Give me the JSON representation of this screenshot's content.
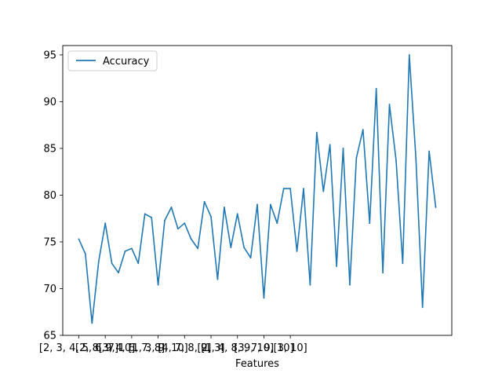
{
  "chart_data": {
    "type": "line",
    "title": "",
    "xlabel": "Features",
    "ylabel": "",
    "x_tick_labels": [
      "[2, 3, 4, 5, 6, 7]",
      "[2, 8, 9, 10]",
      "[3, 4, 6, 7, 8]",
      "[1, 3, 9, 10]",
      "[4, 7, 8, 9]",
      "[2, 3]",
      "[1, 4, 8, 9, 10]",
      "[3, 7, 9, 10]",
      "[3, 10]"
    ],
    "x_tick_positions": [
      0,
      4,
      8,
      12,
      16,
      20,
      24,
      28,
      32
    ],
    "ylim": [
      65,
      96
    ],
    "y_ticks": [
      65,
      70,
      75,
      80,
      85,
      90,
      95
    ],
    "grid": false,
    "legend_position": "upper-left",
    "colors": {
      "line": "#1f77b4"
    },
    "series": [
      {
        "name": "Accuracy",
        "values": [
          75.3,
          73.7,
          66.3,
          72.9,
          77.0,
          72.7,
          71.7,
          74.0,
          74.3,
          72.7,
          78.0,
          77.6,
          70.4,
          77.3,
          78.7,
          76.4,
          77.0,
          75.3,
          74.3,
          79.3,
          77.7,
          71.0,
          78.7,
          74.4,
          78.0,
          74.4,
          73.3,
          79.0,
          69.0,
          79.0,
          77.0,
          80.7,
          80.7,
          74.0,
          80.7,
          70.4,
          86.7,
          80.4,
          85.4,
          72.4,
          85.0,
          70.4,
          84.0,
          87.0,
          77.0,
          91.4,
          71.7,
          89.7,
          83.7,
          72.7,
          95.0,
          84.0,
          68.0,
          84.7,
          78.7
        ]
      }
    ]
  }
}
